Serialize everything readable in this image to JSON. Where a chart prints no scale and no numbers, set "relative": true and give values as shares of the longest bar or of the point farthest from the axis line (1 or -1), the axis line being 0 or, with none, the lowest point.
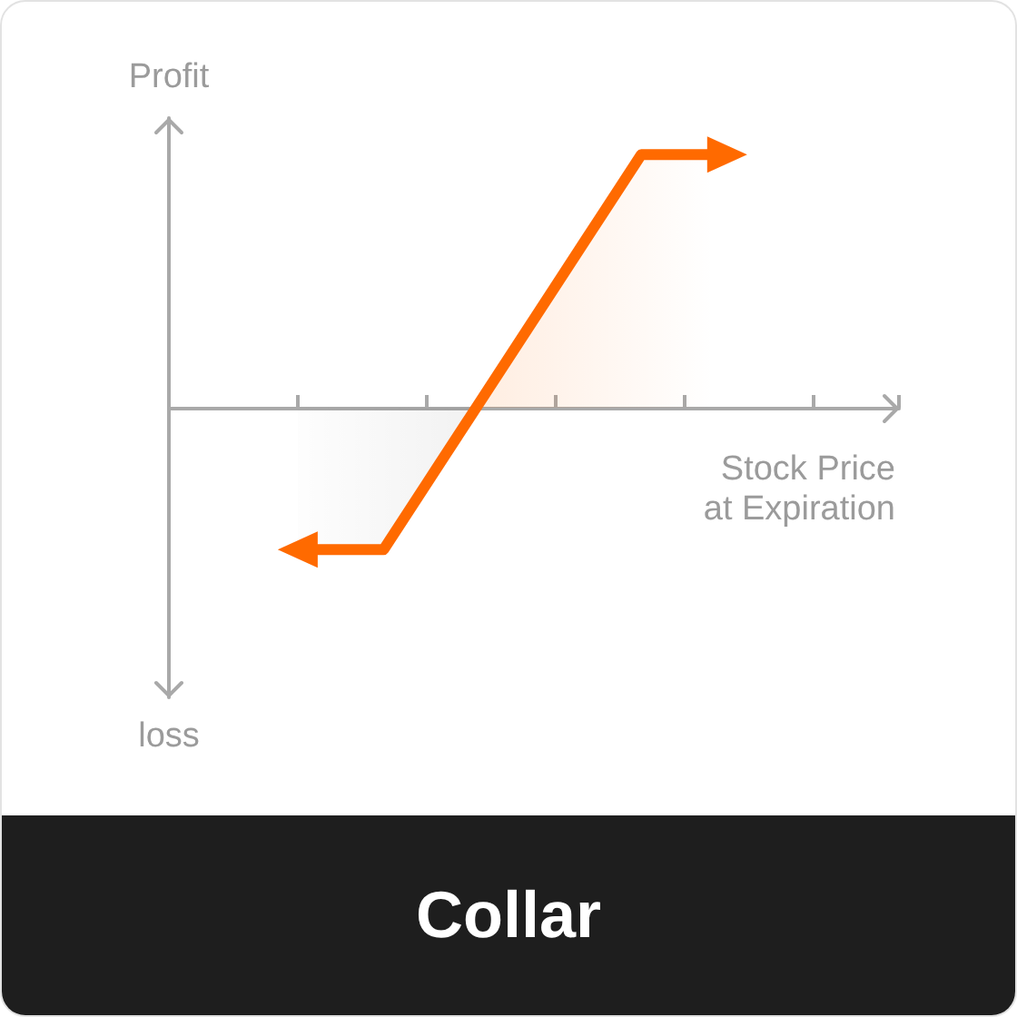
{
  "chart_data": {
    "type": "area",
    "title": "Collar",
    "xlabel": "Stock Price at Expiration",
    "ylabel": "Profit",
    "annotations": [
      "loss"
    ],
    "relative": true,
    "categories": [
      null,
      null,
      null,
      null,
      null,
      null,
      null,
      null,
      null,
      null,
      null,
      null,
      null,
      null,
      null,
      null,
      null,
      null
    ],
    "values": [
      null,
      null,
      null,
      -0.56,
      -0.56,
      -0.56,
      -0.3,
      -0.04,
      0.22,
      0.48,
      0.74,
      1,
      1,
      1,
      null,
      null,
      null,
      null
    ],
    "color": "#ff6a00"
  }
}
